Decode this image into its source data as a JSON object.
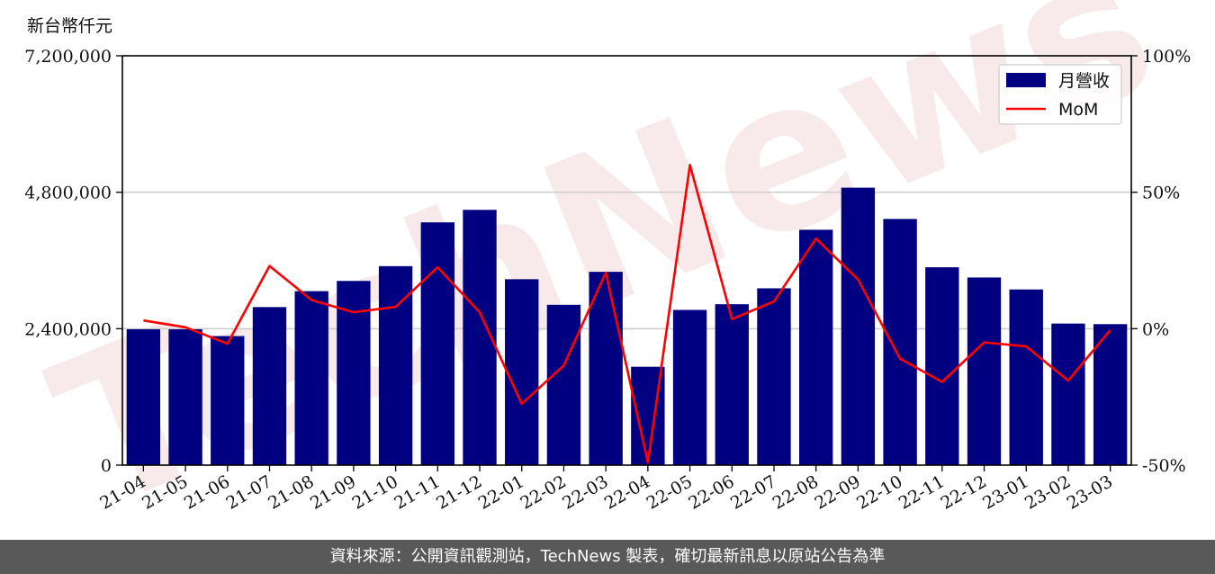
{
  "unit_label": "新台幣仟元",
  "footer_text": "資料來源：公開資訊觀測站，TechNews 製表，確切最新訊息以原站公告為準",
  "watermark_text": "TechNews",
  "colors": {
    "bar": "#000080",
    "line": "#ff0000",
    "watermark": "#e8b6b6",
    "footer_bg": "#595959"
  },
  "chart_data": {
    "type": "bar",
    "categories": [
      "21-04",
      "21-05",
      "21-06",
      "21-07",
      "21-08",
      "21-09",
      "21-10",
      "21-11",
      "21-12",
      "22-01",
      "22-02",
      "22-03",
      "22-04",
      "22-05",
      "22-06",
      "22-07",
      "22-08",
      "22-09",
      "22-10",
      "22-11",
      "22-12",
      "23-01",
      "23-02",
      "23-03"
    ],
    "series": [
      {
        "name": "月營收",
        "type": "bar",
        "axis": "left",
        "values": [
          2390000,
          2390000,
          2270000,
          2780000,
          3060000,
          3240000,
          3500000,
          4270000,
          4490000,
          3270000,
          2820000,
          3400000,
          1730000,
          2730000,
          2830000,
          3110000,
          4140000,
          4880000,
          4330000,
          3480000,
          3300000,
          3090000,
          2490000,
          2480000
        ]
      },
      {
        "name": "MoM",
        "type": "line",
        "axis": "right",
        "values": [
          3,
          0.5,
          -5.5,
          23,
          10.5,
          6,
          8,
          22.5,
          6,
          -27.5,
          -13.5,
          20.5,
          -49,
          60,
          3.5,
          10,
          33,
          18,
          -11,
          -19.5,
          -5,
          -6.5,
          -19,
          -0.5
        ]
      }
    ],
    "yleft": {
      "ylim": [
        0,
        7200000
      ],
      "ticks": [
        0,
        2400000,
        4800000,
        7200000
      ],
      "tick_labels": [
        "0",
        "2,400,000",
        "4,800,000",
        "7,200,000"
      ]
    },
    "yright": {
      "ylim": [
        -50,
        100
      ],
      "ticks": [
        -50,
        0,
        50,
        100
      ],
      "tick_labels": [
        "-50%",
        "0%",
        "50%",
        "100%"
      ]
    },
    "grid": "horizontal",
    "legend": "top-right"
  }
}
